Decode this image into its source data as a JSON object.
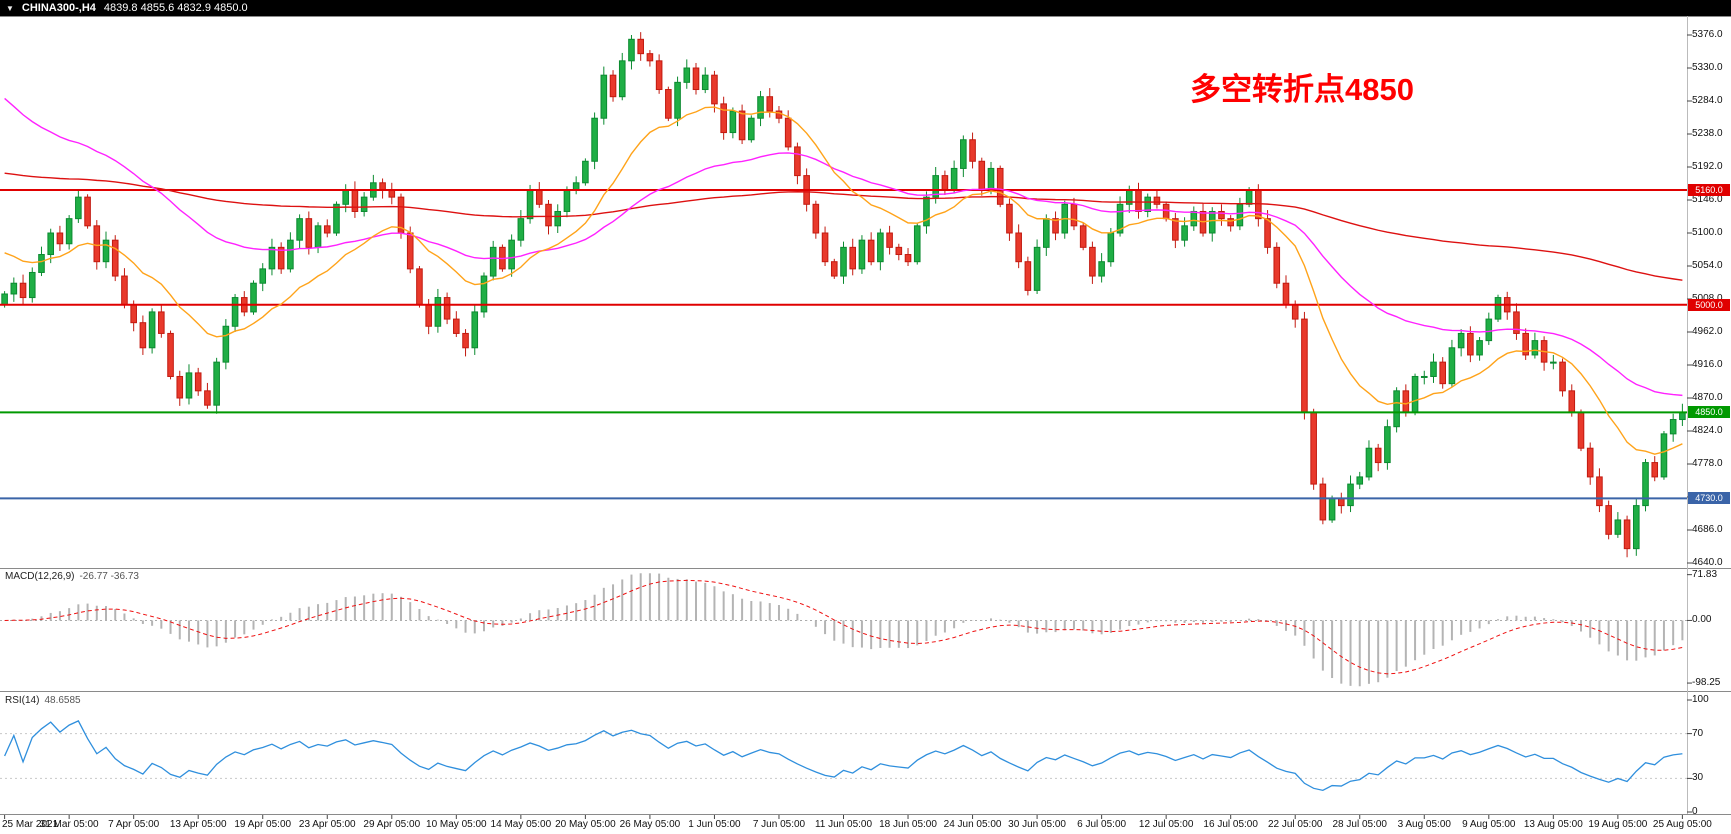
{
  "header": {
    "dropdown_icon": "▼",
    "title": "CHINA300-,H4",
    "ohlc": "4839.8 4855.6 4832.9 4850.0"
  },
  "annotation": {
    "text": "多空转折点4850",
    "color": "#ff0000"
  },
  "chart_data": {
    "type": "candlestick",
    "title": "CHINA300- H4 candlestick chart with MACD and RSI panels",
    "first_open": 5000,
    "close": [
      5015,
      5030,
      5010,
      5045,
      5070,
      5100,
      5085,
      5120,
      5150,
      5110,
      5060,
      5090,
      5040,
      5000,
      4975,
      4940,
      4990,
      4960,
      4900,
      4870,
      4905,
      4880,
      4860,
      4920,
      4970,
      5010,
      4990,
      5030,
      5050,
      5080,
      5050,
      5090,
      5120,
      5080,
      5110,
      5100,
      5140,
      5160,
      5130,
      5150,
      5170,
      5160,
      5150,
      5100,
      5050,
      5000,
      4970,
      5010,
      4980,
      4960,
      4940,
      4990,
      5040,
      5080,
      5050,
      5090,
      5120,
      5160,
      5140,
      5110,
      5130,
      5160,
      5170,
      5200,
      5260,
      5320,
      5290,
      5340,
      5370,
      5350,
      5340,
      5300,
      5260,
      5310,
      5330,
      5300,
      5320,
      5280,
      5240,
      5270,
      5230,
      5260,
      5290,
      5270,
      5260,
      5220,
      5180,
      5140,
      5100,
      5060,
      5040,
      5080,
      5050,
      5090,
      5060,
      5100,
      5080,
      5070,
      5060,
      5110,
      5150,
      5180,
      5160,
      5190,
      5230,
      5200,
      5160,
      5190,
      5140,
      5100,
      5060,
      5020,
      5080,
      5120,
      5100,
      5140,
      5110,
      5080,
      5040,
      5060,
      5100,
      5140,
      5160,
      5130,
      5150,
      5140,
      5120,
      5090,
      5110,
      5130,
      5100,
      5130,
      5120,
      5110,
      5140,
      5160,
      5120,
      5080,
      5030,
      5000,
      4980,
      4850,
      4750,
      4700,
      4730,
      4720,
      4750,
      4760,
      4800,
      4780,
      4830,
      4880,
      4850,
      4900,
      4900,
      4920,
      4890,
      4940,
      4960,
      4930,
      4950,
      4980,
      5010,
      4990,
      4960,
      4930,
      4950,
      4920,
      4920,
      4880,
      4850,
      4800,
      4760,
      4720,
      4680,
      4700,
      4660,
      4720,
      4780,
      4760,
      4820,
      4840,
      4850
    ],
    "x_labels": [
      "25 Mar 2021",
      "31 Mar 05:00",
      "7 Apr 05:00",
      "13 Apr 05:00",
      "19 Apr 05:00",
      "23 Apr 05:00",
      "29 Apr 05:00",
      "10 May 05:00",
      "14 May 05:00",
      "20 May 05:00",
      "26 May 05:00",
      "1 Jun 05:00",
      "7 Jun 05:00",
      "11 Jun 05:00",
      "18 Jun 05:00",
      "24 Jun 05:00",
      "30 Jun 05:00",
      "6 Jul 05:00",
      "12 Jul 05:00",
      "16 Jul 05:00",
      "22 Jul 05:00",
      "28 Jul 05:00",
      "3 Aug 05:00",
      "9 Aug 05:00",
      "13 Aug 05:00",
      "19 Aug 05:00",
      "25 Aug 05:00"
    ],
    "label_every": 7,
    "price_axis": {
      "ticks": [
        5376,
        5330,
        5284,
        5238,
        5192,
        5146,
        5100,
        5054,
        5008,
        4962,
        4916,
        4870,
        4824,
        4778,
        4732,
        4686,
        4640
      ]
    },
    "levels": [
      {
        "label": "5160.0",
        "value": 5160,
        "color": "#e00000"
      },
      {
        "label": "5000.0",
        "value": 5000,
        "color": "#e00000"
      },
      {
        "label": "4850.0",
        "value": 4850,
        "color": "#009900"
      },
      {
        "label": "4730.0",
        "value": 4730,
        "color": "#3a64a8"
      }
    ],
    "overlays": [
      {
        "name": "slow-ma-red",
        "period": 200,
        "seed": 5185,
        "color": "#dd1111"
      },
      {
        "name": "medium-ma-magenta",
        "period": 45,
        "seed": 5300,
        "color": "#ff22ff"
      },
      {
        "name": "fast-ma-orange",
        "period": 16,
        "seed": 5080,
        "color": "#ffa31a"
      }
    ],
    "candle_style": {
      "up_fill": "#1fae45",
      "up_stroke": "#0b8a30",
      "down_fill": "#e8392b",
      "down_stroke": "#c21a10"
    },
    "indicators": {
      "macd": {
        "label": "MACD(12,26,9)",
        "values_text": "-26.77 -36.73",
        "fast": 12,
        "slow": 26,
        "signal": 9,
        "axis_ticks": [
          71.83,
          0,
          -98.25
        ],
        "hist_color": "#b4b4b4",
        "signal_color": "#ee1111"
      },
      "rsi": {
        "label": "RSI(14)",
        "value_text": "48.6585",
        "period": 14,
        "axis_ticks": [
          100,
          70,
          30,
          0
        ],
        "guides": [
          70,
          30
        ],
        "line_color": "#2f8fdd"
      }
    }
  }
}
